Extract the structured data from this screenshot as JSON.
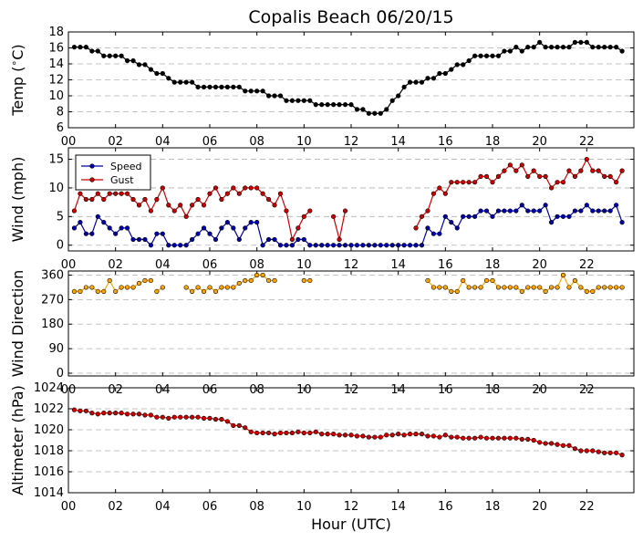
{
  "title": "Copalis Beach 06/20/15",
  "xlabel": "Hour (UTC)",
  "x_tick_labels": [
    "00",
    "02",
    "04",
    "06",
    "08",
    "10",
    "12",
    "14",
    "16",
    "18",
    "20",
    "22"
  ],
  "colors": {
    "temp": "#000000",
    "speed": "#0000aa",
    "gust": "#cc0000",
    "dir": "#ffa500",
    "alt": "#cc0000",
    "grid": "#b0b0b0"
  },
  "chart_data": [
    {
      "type": "line",
      "ylabel": "Temp ($^\\circ$C)",
      "ylabel_text": "Temp (",
      "ylabel_sup": "∘",
      "ylabel_end": "C)",
      "ylim": [
        6,
        18
      ],
      "yticks": [
        6,
        8,
        10,
        12,
        14,
        16,
        18
      ],
      "xlim": [
        0,
        24
      ],
      "series": [
        {
          "key": "temp",
          "x": [
            0.25,
            0.5,
            0.75,
            1,
            1.25,
            1.5,
            1.75,
            2,
            2.25,
            2.5,
            2.75,
            3,
            3.25,
            3.5,
            3.75,
            4,
            4.25,
            4.5,
            4.75,
            5,
            5.25,
            5.5,
            5.75,
            6,
            6.25,
            6.5,
            6.75,
            7,
            7.25,
            7.5,
            7.75,
            8,
            8.25,
            8.5,
            8.75,
            9,
            9.25,
            9.5,
            9.75,
            10,
            10.25,
            10.5,
            10.75,
            11,
            11.25,
            11.5,
            11.75,
            12,
            12.25,
            12.5,
            12.75,
            13,
            13.25,
            13.5,
            13.75,
            14,
            14.25,
            14.5,
            14.75,
            15,
            15.25,
            15.5,
            15.75,
            16,
            16.25,
            16.5,
            16.75,
            17,
            17.25,
            17.5,
            17.75,
            18,
            18.25,
            18.5,
            18.75,
            19,
            19.25,
            19.5,
            19.75,
            20,
            20.25,
            20.5,
            20.75,
            21,
            21.25,
            21.5,
            21.75,
            22,
            22.25,
            22.5,
            22.75,
            23,
            23.25,
            23.5
          ],
          "values": [
            16.1,
            16.1,
            16.1,
            15.6,
            15.6,
            15.0,
            15.0,
            15.0,
            15.0,
            14.4,
            14.4,
            13.9,
            13.9,
            13.3,
            12.8,
            12.8,
            12.2,
            11.7,
            11.7,
            11.7,
            11.7,
            11.1,
            11.1,
            11.1,
            11.1,
            11.1,
            11.1,
            11.1,
            11.1,
            10.6,
            10.6,
            10.6,
            10.6,
            10.0,
            10.0,
            10.0,
            9.4,
            9.4,
            9.4,
            9.4,
            9.4,
            8.9,
            8.9,
            8.9,
            8.9,
            8.9,
            8.9,
            8.9,
            8.3,
            8.3,
            7.8,
            7.8,
            7.8,
            8.3,
            9.4,
            10.0,
            11.1,
            11.7,
            11.7,
            11.7,
            12.2,
            12.2,
            12.8,
            12.8,
            13.3,
            13.9,
            13.9,
            14.4,
            15.0,
            15.0,
            15.0,
            15.0,
            15.0,
            15.6,
            15.6,
            16.1,
            15.6,
            16.1,
            16.1,
            16.7,
            16.1,
            16.1,
            16.1,
            16.1,
            16.1,
            16.7,
            16.7,
            16.7,
            16.1,
            16.1,
            16.1,
            16.1,
            16.1,
            15.6
          ]
        }
      ]
    },
    {
      "type": "line",
      "ylabel": "Wind (mph)",
      "ylim": [
        -1,
        17
      ],
      "yticks": [
        0,
        5,
        10,
        15
      ],
      "xlim": [
        0,
        24
      ],
      "legend": {
        "placement": "upper-left",
        "entries": [
          {
            "key": "speed",
            "label": "Speed"
          },
          {
            "key": "gust",
            "label": "Gust"
          }
        ]
      },
      "series": [
        {
          "key": "speed",
          "name": "Speed",
          "x": [
            0.25,
            0.5,
            0.75,
            1,
            1.25,
            1.5,
            1.75,
            2,
            2.25,
            2.5,
            2.75,
            3,
            3.25,
            3.5,
            3.75,
            4,
            4.25,
            4.5,
            4.75,
            5,
            5.25,
            5.5,
            5.75,
            6,
            6.25,
            6.5,
            6.75,
            7,
            7.25,
            7.5,
            7.75,
            8,
            8.25,
            8.5,
            8.75,
            9,
            9.25,
            9.5,
            9.75,
            10,
            10.25,
            10.5,
            10.75,
            11,
            11.25,
            11.5,
            11.75,
            12,
            12.25,
            12.5,
            12.75,
            13,
            13.25,
            13.5,
            13.75,
            14,
            14.25,
            14.5,
            14.75,
            15,
            15.25,
            15.5,
            15.75,
            16,
            16.25,
            16.5,
            16.75,
            17,
            17.25,
            17.5,
            17.75,
            18,
            18.25,
            18.5,
            18.75,
            19,
            19.25,
            19.5,
            19.75,
            20,
            20.25,
            20.5,
            20.75,
            21,
            21.25,
            21.5,
            21.75,
            22,
            22.25,
            22.5,
            22.75,
            23,
            23.25,
            23.5
          ],
          "values": [
            3,
            4,
            2,
            2,
            5,
            4,
            3,
            2,
            3,
            3,
            1,
            1,
            1,
            0,
            2,
            2,
            0,
            0,
            0,
            0,
            1,
            2,
            3,
            2,
            1,
            3,
            4,
            3,
            1,
            3,
            4,
            4,
            0,
            1,
            1,
            0,
            0,
            0,
            1,
            1,
            0,
            0,
            0,
            0,
            0,
            0,
            0,
            0,
            0,
            0,
            0,
            0,
            0,
            0,
            0,
            0,
            0,
            0,
            0,
            0,
            3,
            2,
            2,
            5,
            4,
            3,
            5,
            5,
            5,
            6,
            6,
            5,
            6,
            6,
            6,
            6,
            7,
            6,
            6,
            6,
            7,
            4,
            5,
            5,
            5,
            6,
            6,
            7,
            6,
            6,
            6,
            6,
            7,
            4
          ]
        },
        {
          "key": "gust",
          "name": "Gust",
          "x": [
            0.25,
            0.5,
            0.75,
            1,
            1.25,
            1.5,
            1.75,
            2,
            2.25,
            2.5,
            2.75,
            3,
            3.25,
            3.5,
            3.75,
            4,
            4.25,
            4.5,
            4.75,
            5,
            5.25,
            5.5,
            5.75,
            6,
            6.25,
            6.5,
            6.75,
            7,
            7.25,
            7.5,
            7.75,
            8,
            8.25,
            8.5,
            8.75,
            9,
            9.25,
            9.5,
            9.75,
            10,
            10.25,
            null,
            11.25,
            11.5,
            11.75,
            null,
            14.75,
            15,
            15.25,
            15.5,
            15.75,
            16,
            16.25,
            16.5,
            16.75,
            17,
            17.25,
            17.5,
            17.75,
            18,
            18.25,
            18.5,
            18.75,
            19,
            19.25,
            19.5,
            19.75,
            20,
            20.25,
            20.5,
            20.75,
            21,
            21.25,
            21.5,
            21.75,
            22,
            22.25,
            22.5,
            22.75,
            23,
            23.25,
            23.5
          ],
          "values": [
            6,
            9,
            8,
            8,
            9,
            8,
            9,
            9,
            9,
            9,
            8,
            7,
            8,
            6,
            8,
            10,
            7,
            6,
            7,
            5,
            7,
            8,
            7,
            9,
            10,
            8,
            9,
            10,
            9,
            10,
            10,
            10,
            9,
            8,
            7,
            9,
            6,
            1,
            3,
            5,
            6,
            null,
            5,
            1,
            6,
            null,
            3,
            5,
            6,
            9,
            10,
            9,
            11,
            11,
            11,
            11,
            11,
            12,
            12,
            11,
            12,
            13,
            14,
            13,
            14,
            12,
            13,
            12,
            12,
            10,
            11,
            11,
            13,
            12,
            13,
            15,
            13,
            13,
            12,
            12,
            11,
            13
          ]
        }
      ]
    },
    {
      "type": "scatter",
      "ylabel": "Wind Direction",
      "ylim": [
        -10,
        375
      ],
      "yticks": [
        0,
        90,
        180,
        270,
        360
      ],
      "xlim": [
        0,
        24
      ],
      "series": [
        {
          "key": "dir",
          "x": [
            0.25,
            0.5,
            0.75,
            1,
            1.25,
            1.5,
            1.75,
            2,
            2.25,
            2.5,
            2.75,
            3,
            3.25,
            3.5,
            null,
            3.75,
            4,
            null,
            5,
            5.25,
            5.5,
            5.75,
            6,
            6.25,
            6.5,
            6.75,
            7,
            7.25,
            7.5,
            7.75,
            8,
            8.25,
            8.5,
            8.75,
            null,
            10,
            10.25,
            null,
            15.25,
            15.5,
            15.75,
            16,
            16.25,
            16.5,
            16.75,
            17,
            17.25,
            17.5,
            17.75,
            18,
            18.25,
            18.5,
            18.75,
            19,
            19.25,
            19.5,
            19.75,
            20,
            20.25,
            20.5,
            20.75,
            21,
            21.25,
            21.5,
            21.75,
            22,
            22.25,
            22.5,
            22.75,
            23,
            23.25,
            23.5
          ],
          "values": [
            300,
            300,
            315,
            315,
            300,
            300,
            340,
            300,
            315,
            315,
            315,
            330,
            340,
            340,
            null,
            300,
            315,
            null,
            315,
            300,
            315,
            300,
            315,
            300,
            315,
            315,
            315,
            330,
            340,
            340,
            360,
            360,
            340,
            340,
            null,
            340,
            340,
            null,
            340,
            315,
            315,
            315,
            300,
            300,
            340,
            315,
            315,
            315,
            340,
            340,
            315,
            315,
            315,
            315,
            300,
            315,
            315,
            315,
            300,
            315,
            315,
            360,
            315,
            340,
            315,
            300,
            300,
            315,
            315,
            315,
            315,
            315
          ]
        }
      ]
    },
    {
      "type": "line",
      "ylabel": "Altimeter (hPa)",
      "ylim": [
        1014,
        1024
      ],
      "yticks": [
        1014,
        1016,
        1018,
        1020,
        1022,
        1024
      ],
      "xlim": [
        0,
        24
      ],
      "series": [
        {
          "key": "alt",
          "x": [
            0.25,
            0.5,
            0.75,
            1,
            1.25,
            1.5,
            1.75,
            2,
            2.25,
            2.5,
            2.75,
            3,
            3.25,
            3.5,
            3.75,
            4,
            4.25,
            4.5,
            4.75,
            5,
            5.25,
            5.5,
            5.75,
            6,
            6.25,
            6.5,
            6.75,
            7,
            7.25,
            7.5,
            7.75,
            8,
            8.25,
            8.5,
            8.75,
            9,
            9.25,
            9.5,
            9.75,
            10,
            10.25,
            10.5,
            10.75,
            11,
            11.25,
            11.5,
            11.75,
            12,
            12.25,
            12.5,
            12.75,
            13,
            13.25,
            13.5,
            13.75,
            14,
            14.25,
            14.5,
            14.75,
            15,
            15.25,
            15.5,
            15.75,
            16,
            16.25,
            16.5,
            16.75,
            17,
            17.25,
            17.5,
            17.75,
            18,
            18.25,
            18.5,
            18.75,
            19,
            19.25,
            19.5,
            19.75,
            20,
            20.25,
            20.5,
            20.75,
            21,
            21.25,
            21.5,
            21.75,
            22,
            22.25,
            22.5,
            22.75,
            23,
            23.25,
            23.5
          ],
          "values": [
            1021.9,
            1021.8,
            1021.8,
            1021.6,
            1021.5,
            1021.6,
            1021.6,
            1021.6,
            1021.6,
            1021.5,
            1021.5,
            1021.5,
            1021.4,
            1021.4,
            1021.2,
            1021.2,
            1021.1,
            1021.2,
            1021.2,
            1021.2,
            1021.2,
            1021.2,
            1021.1,
            1021.1,
            1021.0,
            1021.0,
            1020.8,
            1020.4,
            1020.4,
            1020.2,
            1019.8,
            1019.7,
            1019.7,
            1019.7,
            1019.6,
            1019.7,
            1019.7,
            1019.7,
            1019.8,
            1019.7,
            1019.7,
            1019.8,
            1019.6,
            1019.6,
            1019.6,
            1019.5,
            1019.5,
            1019.5,
            1019.4,
            1019.4,
            1019.3,
            1019.3,
            1019.3,
            1019.5,
            1019.5,
            1019.6,
            1019.5,
            1019.6,
            1019.6,
            1019.6,
            1019.4,
            1019.4,
            1019.3,
            1019.5,
            1019.3,
            1019.3,
            1019.2,
            1019.2,
            1019.2,
            1019.3,
            1019.2,
            1019.2,
            1019.2,
            1019.2,
            1019.2,
            1019.2,
            1019.1,
            1019.1,
            1019.0,
            1018.8,
            1018.7,
            1018.7,
            1018.6,
            1018.5,
            1018.5,
            1018.2,
            1018.0,
            1018.0,
            1018.0,
            1017.9,
            1017.8,
            1017.8,
            1017.8,
            1017.6
          ]
        }
      ]
    }
  ]
}
